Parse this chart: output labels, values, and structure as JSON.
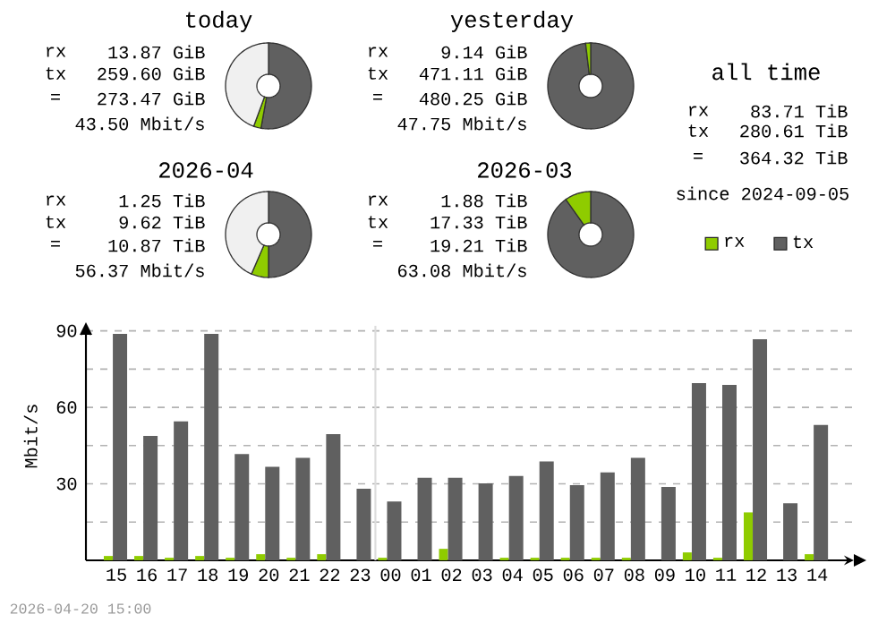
{
  "chart_data": [
    {
      "type": "donut",
      "title": "today",
      "categories": [
        null,
        null,
        null
      ],
      "values": [
        52.8,
        2.8,
        44.4
      ],
      "colors": [
        "#606060",
        "#8fcc00",
        "#f0f0f0"
      ],
      "annotations": [
        "rx",
        "13.87 GiB",
        "tx",
        "259.60 GiB",
        "=",
        "273.47 GiB",
        "43.50 Mbit/s"
      ]
    },
    {
      "type": "donut",
      "title": "yesterday",
      "categories": [
        null,
        null
      ],
      "values": [
        98.1,
        1.9
      ],
      "colors": [
        "#606060",
        "#8fcc00"
      ],
      "annotations": [
        "rx",
        "9.14 GiB",
        "tx",
        "471.11 GiB",
        "=",
        "480.25 GiB",
        "47.75 Mbit/s"
      ]
    },
    {
      "type": "other",
      "title": "all time",
      "annotations": [
        "rx",
        "83.71 TiB",
        "tx",
        "280.61 TiB",
        "=",
        "364.32 TiB",
        "since 2024-09-05"
      ]
    },
    {
      "type": "donut",
      "title": "2026-04",
      "categories": [
        null,
        null,
        null
      ],
      "values": [
        50,
        6.5,
        43.5
      ],
      "colors": [
        "#606060",
        "#8fcc00",
        "#f0f0f0"
      ],
      "annotations": [
        "rx",
        "1.25 TiB",
        "tx",
        "9.62 TiB",
        "=",
        "10.87 TiB",
        "56.37 Mbit/s"
      ]
    },
    {
      "type": "donut",
      "title": "2026-03",
      "categories": [
        null,
        null
      ],
      "values": [
        90.2,
        9.8
      ],
      "colors": [
        "#606060",
        "#8fcc00"
      ],
      "annotations": [
        "rx",
        "1.88 TiB",
        "tx",
        "17.33 TiB",
        "=",
        "19.21 TiB",
        "63.08 Mbit/s"
      ]
    },
    {
      "type": "bar",
      "ylabel": "Mbit/s",
      "categories": [
        "15",
        "16",
        "17",
        "18",
        "19",
        "20",
        "21",
        "22",
        "23",
        "00",
        "01",
        "02",
        "03",
        "04",
        "05",
        "06",
        "07",
        "08",
        "09",
        "10",
        "11",
        "12",
        "13",
        "14"
      ],
      "series": [
        {
          "name": "rx",
          "color": "#8fcc00",
          "values": [
            1.7,
            1.7,
            1.0,
            1.7,
            1.0,
            2.4,
            1.0,
            2.4,
            0,
            1.0,
            0,
            4.5,
            0,
            1.0,
            1.0,
            1.0,
            1.0,
            1.0,
            0,
            3.1,
            1.0,
            18.8,
            0,
            2.4
          ]
        },
        {
          "name": "tx",
          "color": "#606060",
          "values": [
            88.8,
            48.8,
            54.5,
            88.8,
            41.7,
            36.7,
            40.2,
            49.5,
            28.1,
            23.1,
            32.4,
            32.4,
            30.2,
            33.1,
            38.8,
            29.5,
            34.5,
            40.2,
            28.8,
            69.5,
            68.8,
            86.7,
            22.4,
            53.1
          ]
        }
      ],
      "ylim": [
        0,
        92
      ],
      "yticks": [
        {
          "value": 15,
          "label": null
        },
        30,
        {
          "value": 45,
          "label": null
        },
        60,
        {
          "value": 75,
          "label": null
        },
        90
      ],
      "grid": "y",
      "legend": "top right",
      "ref_lines": [
        {
          "axis": "x",
          "value": "00",
          "color": "#dcdcdc"
        }
      ],
      "annotations": [
        "2026-04-20 15:00"
      ]
    }
  ]
}
